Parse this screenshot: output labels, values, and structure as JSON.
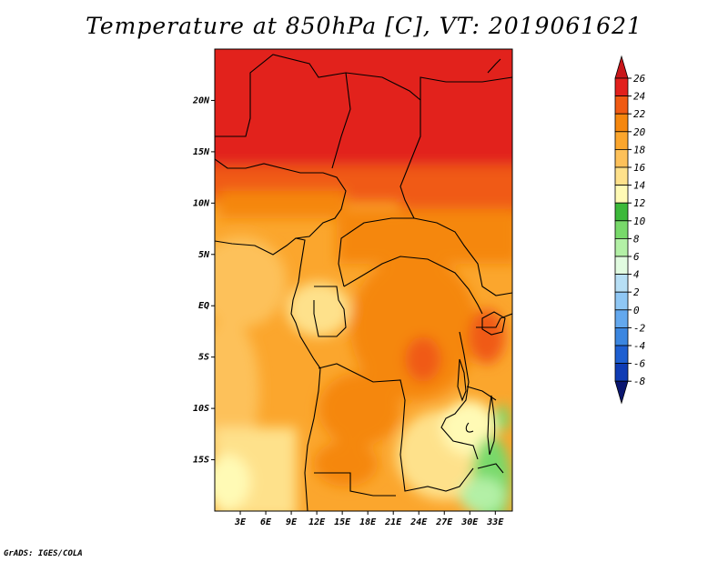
{
  "title": "Temperature at 850hPa [C], VT: 2019061621",
  "credit": "GrADS: IGES/COLA",
  "map": {
    "lat_labels": [
      "20N",
      "15N",
      "10N",
      "5N",
      "EQ",
      "5S",
      "10S",
      "15S"
    ],
    "lat_values": [
      20,
      15,
      10,
      5,
      0,
      -5,
      -10,
      -15
    ],
    "lon_labels": [
      "3E",
      "6E",
      "9E",
      "12E",
      "15E",
      "18E",
      "21E",
      "24E",
      "27E",
      "30E",
      "33E"
    ],
    "lon_values": [
      3,
      6,
      9,
      12,
      15,
      18,
      21,
      24,
      27,
      30,
      33
    ],
    "lon_range": [
      0,
      35
    ],
    "lat_range": [
      -20,
      25
    ]
  },
  "colorbar": {
    "labels": [
      "26",
      "24",
      "22",
      "20",
      "18",
      "16",
      "14",
      "12",
      "10",
      "8",
      "6",
      "4",
      "2",
      "0",
      "-2",
      "-4",
      "-6",
      "-8"
    ],
    "colors": {
      "26+": "#c8161a",
      "24-26": "#e2201c",
      "22-24": "#f05a13",
      "20-22": "#f5870e",
      "18-20": "#fba62d",
      "16-18": "#fdc15a",
      "14-16": "#fee18b",
      "12-14": "#fffab5",
      "10-12": "#3cb93a",
      "8-10": "#78d96a",
      "6-8": "#b3f0a6",
      "4-6": "#e1fbe0",
      "2-4": "#b7dff5",
      "0-2": "#8fc7f4",
      "-2-0": "#63a8ee",
      "-4--2": "#3b86e0",
      "-6--4": "#1e5fd1",
      "-8--6": "#0f3cb4",
      "<-8": "#0a1670"
    }
  }
}
